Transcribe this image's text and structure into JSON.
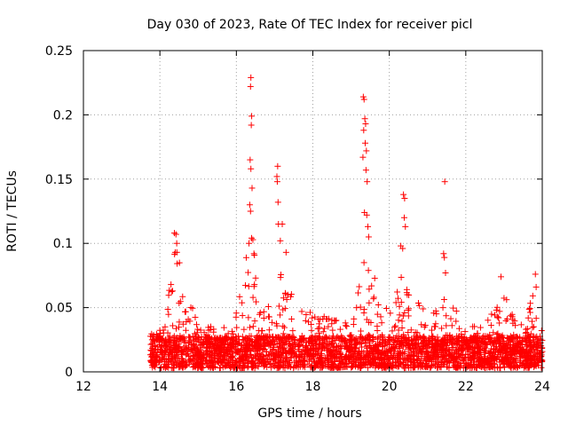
{
  "chart_data": {
    "type": "scatter",
    "title": "Day 030 of 2023, Rate Of TEC Index for receiver picl",
    "xlabel": "GPS time / hours",
    "ylabel": "ROTI / TECUs",
    "xlim": [
      12,
      24
    ],
    "ylim": [
      0,
      0.25
    ],
    "xticks": [
      12,
      14,
      16,
      18,
      20,
      22,
      24
    ],
    "yticks": [
      0,
      0.05,
      0.1,
      0.15,
      0.2,
      0.25
    ],
    "xtick_labels": [
      "12",
      "14",
      "16",
      "18",
      "20",
      "22",
      "24"
    ],
    "ytick_labels": [
      "0",
      "0.05",
      "0.1",
      "0.15",
      "0.2",
      "0.25"
    ],
    "grid": true,
    "marker": "+",
    "color": "#ff0000",
    "data_start_hour": 13.75,
    "data_end_hour": 24.0,
    "baseline_max": 0.025,
    "envelope": [
      [
        13.75,
        0.028
      ],
      [
        14.0,
        0.032
      ],
      [
        14.15,
        0.045
      ],
      [
        14.3,
        0.07
      ],
      [
        14.4,
        0.095
      ],
      [
        14.5,
        0.085
      ],
      [
        14.6,
        0.06
      ],
      [
        14.8,
        0.05
      ],
      [
        15.0,
        0.04
      ],
      [
        15.2,
        0.035
      ],
      [
        15.5,
        0.03
      ],
      [
        15.8,
        0.035
      ],
      [
        16.0,
        0.05
      ],
      [
        16.2,
        0.07
      ],
      [
        16.3,
        0.1
      ],
      [
        16.4,
        0.12
      ],
      [
        16.5,
        0.08
      ],
      [
        16.7,
        0.05
      ],
      [
        16.9,
        0.06
      ],
      [
        17.1,
        0.08
      ],
      [
        17.3,
        0.07
      ],
      [
        17.5,
        0.055
      ],
      [
        17.8,
        0.065
      ],
      [
        18.0,
        0.05
      ],
      [
        18.3,
        0.04
      ],
      [
        18.6,
        0.045
      ],
      [
        19.0,
        0.04
      ],
      [
        19.2,
        0.07
      ],
      [
        19.35,
        0.12
      ],
      [
        19.5,
        0.09
      ],
      [
        19.7,
        0.06
      ],
      [
        20.0,
        0.05
      ],
      [
        20.3,
        0.08
      ],
      [
        20.5,
        0.06
      ],
      [
        20.8,
        0.05
      ],
      [
        21.1,
        0.04
      ],
      [
        21.4,
        0.06
      ],
      [
        21.7,
        0.05
      ],
      [
        22.0,
        0.035
      ],
      [
        22.4,
        0.035
      ],
      [
        22.8,
        0.05
      ],
      [
        23.0,
        0.06
      ],
      [
        23.3,
        0.035
      ],
      [
        23.6,
        0.045
      ],
      [
        23.8,
        0.06
      ],
      [
        24.0,
        0.03
      ]
    ],
    "spikes": [
      [
        14.38,
        0.108
      ],
      [
        14.42,
        0.107
      ],
      [
        14.44,
        0.1
      ],
      [
        14.4,
        0.093
      ],
      [
        16.38,
        0.229
      ],
      [
        16.37,
        0.222
      ],
      [
        16.4,
        0.199
      ],
      [
        16.39,
        0.192
      ],
      [
        16.36,
        0.165
      ],
      [
        16.38,
        0.158
      ],
      [
        16.41,
        0.143
      ],
      [
        16.35,
        0.13
      ],
      [
        16.37,
        0.125
      ],
      [
        16.33,
        0.1
      ],
      [
        16.46,
        0.092
      ],
      [
        17.08,
        0.16
      ],
      [
        17.06,
        0.152
      ],
      [
        17.07,
        0.148
      ],
      [
        17.09,
        0.132
      ],
      [
        17.1,
        0.115
      ],
      [
        17.2,
        0.115
      ],
      [
        17.15,
        0.102
      ],
      [
        17.3,
        0.093
      ],
      [
        19.32,
        0.214
      ],
      [
        19.34,
        0.212
      ],
      [
        19.36,
        0.197
      ],
      [
        19.38,
        0.193
      ],
      [
        19.33,
        0.188
      ],
      [
        19.37,
        0.178
      ],
      [
        19.4,
        0.172
      ],
      [
        19.31,
        0.167
      ],
      [
        19.39,
        0.157
      ],
      [
        19.42,
        0.148
      ],
      [
        19.35,
        0.124
      ],
      [
        19.41,
        0.122
      ],
      [
        19.44,
        0.113
      ],
      [
        19.46,
        0.105
      ],
      [
        20.37,
        0.138
      ],
      [
        20.4,
        0.135
      ],
      [
        20.39,
        0.12
      ],
      [
        20.42,
        0.113
      ],
      [
        20.3,
        0.098
      ],
      [
        20.35,
        0.096
      ],
      [
        21.45,
        0.148
      ],
      [
        21.42,
        0.092
      ],
      [
        21.44,
        0.089
      ],
      [
        21.47,
        0.077
      ],
      [
        22.92,
        0.074
      ],
      [
        23.82,
        0.076
      ],
      [
        23.84,
        0.066
      ]
    ]
  }
}
